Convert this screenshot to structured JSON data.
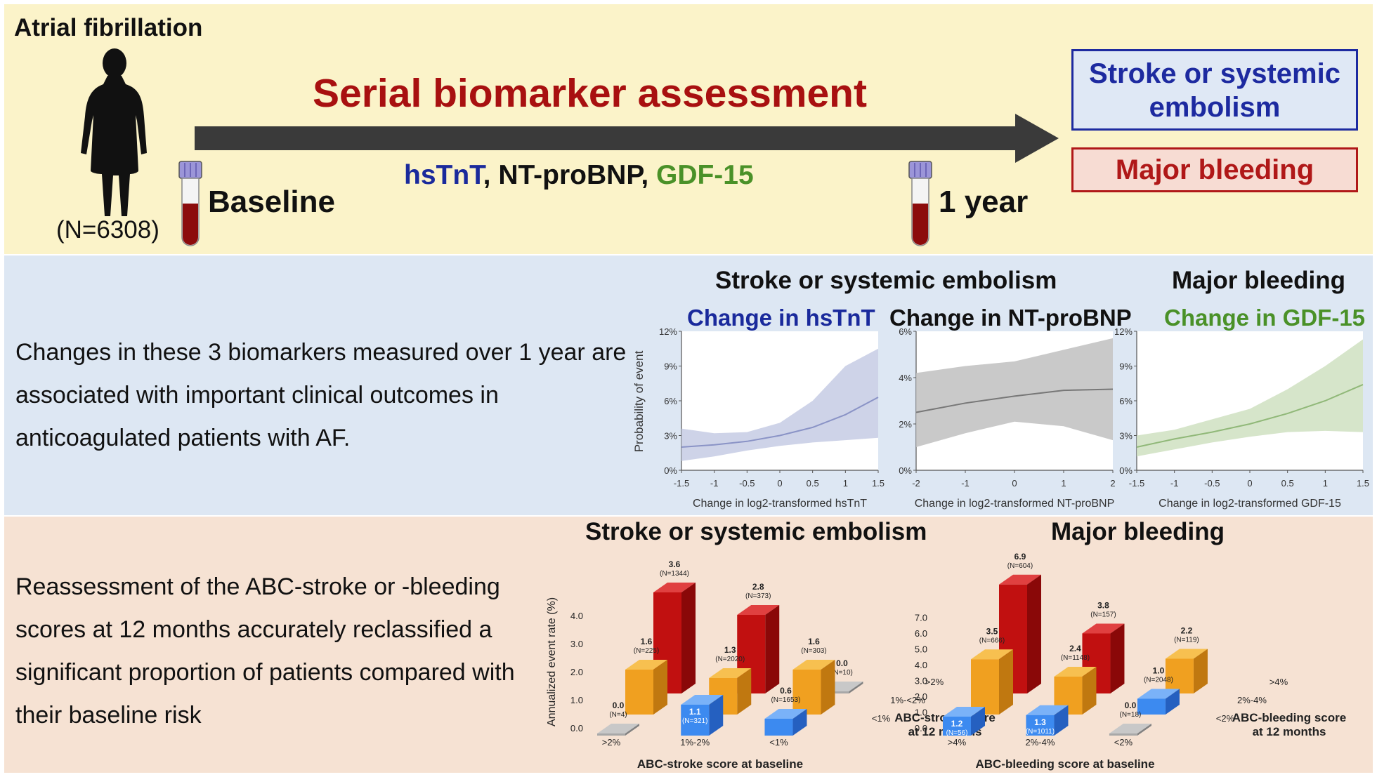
{
  "header": {
    "population_label": "Atrial fibrillation",
    "n_label": "(N=6308)",
    "main_title": "Serial biomarker assessment",
    "biomarkers": [
      {
        "name": "hsTnT",
        "color": "#1a2a9c",
        "sep": ", "
      },
      {
        "name": "NT-proBNP",
        "color": "#111111",
        "sep": ", "
      },
      {
        "name": "GDF-15",
        "color": "#4a9128",
        "sep": ""
      }
    ],
    "baseline_label": "Baseline",
    "one_year_label": "1 year",
    "outcome_stroke": "Stroke or systemic embolism",
    "outcome_bleeding": "Major bleeding"
  },
  "middle": {
    "text": "Changes in these 3 biomarkers measured over 1 year are associated with important clinical outcomes in anticoagulated patients with AF.",
    "title_stroke": "Stroke or systemic embolism",
    "title_bleeding": "Major bleeding",
    "ylabel": "Probability of event"
  },
  "bottom": {
    "text": "Reassessment of the ABC-stroke or -bleeding scores at 12 months accurately reclassified a significant proportion of patients compared with their baseline risk",
    "title_stroke": "Stroke or systemic embolism",
    "title_bleeding": "Major bleeding",
    "ylabel": "Annualized event rate (%)"
  },
  "colors": {
    "red_bar": "#c11010",
    "orange_bar": "#f0a020",
    "blue_bar": "#3c8af0",
    "gray_bar": "#a8a8a8",
    "hsTnT": "#1a2a9c",
    "GDF15": "#4a9128"
  },
  "chart_data": [
    {
      "type": "line",
      "subtitle": "Change in hsTnT",
      "subtitle_color": "#1a2a9c",
      "xlabel": "Change in log2-transformed hsTnT",
      "ylabel": "Probability of event",
      "xlim": [
        -1.5,
        1.5
      ],
      "ylim": [
        0,
        12
      ],
      "xticks": [
        -1.5,
        -1,
        -0.5,
        0,
        0.5,
        1,
        1.5
      ],
      "yticks": [
        "0%",
        "3%",
        "6%",
        "9%",
        "12%"
      ],
      "ytick_values": [
        0,
        3,
        6,
        9,
        12
      ],
      "line_color": "#8a93c6",
      "band_color": "#c6cbe4",
      "x": [
        -1.5,
        -1,
        -0.5,
        0,
        0.5,
        1,
        1.5
      ],
      "y": [
        2.0,
        2.2,
        2.5,
        3.0,
        3.7,
        4.8,
        6.3
      ],
      "lower": [
        0.8,
        1.2,
        1.7,
        2.1,
        2.4,
        2.6,
        2.8
      ],
      "upper": [
        3.6,
        3.2,
        3.3,
        4.1,
        6.0,
        9.0,
        10.5
      ]
    },
    {
      "type": "line",
      "subtitle": "Change in NT-proBNP",
      "subtitle_color": "#111111",
      "xlabel": "Change in log2-transformed NT-proBNP",
      "ylabel": "",
      "xlim": [
        -2,
        2
      ],
      "ylim": [
        0,
        6
      ],
      "xticks": [
        -2,
        -1,
        0,
        1,
        2
      ],
      "yticks": [
        "0%",
        "2%",
        "4%",
        "6%"
      ],
      "ytick_values": [
        0,
        2,
        4,
        6
      ],
      "line_color": "#777777",
      "band_color": "#c0c0c0",
      "x": [
        -2,
        -1,
        0,
        1,
        2
      ],
      "y": [
        2.5,
        2.9,
        3.2,
        3.45,
        3.5
      ],
      "lower": [
        1.0,
        1.6,
        2.1,
        1.9,
        1.3
      ],
      "upper": [
        4.2,
        4.5,
        4.7,
        5.2,
        5.7
      ]
    },
    {
      "type": "line",
      "subtitle": "Change in GDF-15",
      "subtitle_color": "#4a9128",
      "xlabel": "Change in log2-transformed GDF-15",
      "ylabel": "",
      "xlim": [
        -1.5,
        1.5
      ],
      "ylim": [
        0,
        12
      ],
      "xticks": [
        -1.5,
        -1,
        -0.5,
        0,
        0.5,
        1,
        1.5
      ],
      "yticks": [
        "0%",
        "3%",
        "6%",
        "9%",
        "12%"
      ],
      "ytick_values": [
        0,
        3,
        6,
        9,
        12
      ],
      "line_color": "#90b878",
      "band_color": "#cfe0c1",
      "x": [
        -1.5,
        -1,
        -0.5,
        0,
        0.5,
        1,
        1.5
      ],
      "y": [
        2.0,
        2.7,
        3.3,
        4.0,
        4.9,
        6.0,
        7.4
      ],
      "lower": [
        1.2,
        1.8,
        2.4,
        2.9,
        3.3,
        3.4,
        3.3
      ],
      "upper": [
        3.0,
        3.5,
        4.4,
        5.3,
        7.0,
        9.0,
        11.3
      ]
    },
    {
      "type": "bar",
      "title": "Stroke or systemic embolism",
      "xlabel": "ABC-stroke score at baseline",
      "zlabel": "ABC-stroke score at 12 months",
      "ylabel": "Annualized event rate (%)",
      "ylim": [
        0,
        4
      ],
      "yticks": [
        "0.0",
        "1.0",
        "2.0",
        "3.0",
        "4.0"
      ],
      "categories": [
        ">2%",
        "1%-2%",
        "<1%"
      ],
      "rows": [
        ">2%",
        "1%-<2%",
        "<1%"
      ],
      "bars": [
        {
          "base": ">2%",
          "now": ">2%",
          "value": 3.6,
          "n": "(N=1344)",
          "color": "red"
        },
        {
          "base": ">2%",
          "now": "1%-<2%",
          "value": 1.6,
          "n": "(N=225)",
          "color": "orange"
        },
        {
          "base": ">2%",
          "now": "<1%",
          "value": 0.0,
          "n": "(N=4)",
          "color": "gray"
        },
        {
          "base": "1%-2%",
          "now": ">2%",
          "value": 2.8,
          "n": "(N=373)",
          "color": "red"
        },
        {
          "base": "1%-2%",
          "now": "1%-<2%",
          "value": 1.3,
          "n": "(N=2020)",
          "color": "orange"
        },
        {
          "base": "1%-2%",
          "now": "<1%",
          "value": 1.1,
          "n": "(N=321)",
          "color": "blue"
        },
        {
          "base": "<1%",
          "now": ">2%",
          "value": 0.0,
          "n": "(N=10)",
          "color": "gray"
        },
        {
          "base": "<1%",
          "now": "1%-<2%",
          "value": 1.6,
          "n": "(N=303)",
          "color": "orange"
        },
        {
          "base": "<1%",
          "now": "<1%",
          "value": 0.6,
          "n": "(N=1653)",
          "color": "blue"
        }
      ]
    },
    {
      "type": "bar",
      "title": "Major bleeding",
      "xlabel": "ABC-bleeding score at baseline",
      "zlabel": "ABC-bleeding score at 12 months",
      "ylabel": "",
      "ylim": [
        0,
        7
      ],
      "yticks": [
        "0.0",
        "1.0",
        "2.0",
        "3.0",
        "4.0",
        "5.0",
        "6.0",
        "7.0"
      ],
      "categories": [
        ">4%",
        "2%-4%",
        "<2%"
      ],
      "rows": [
        ">4%",
        "2%-4%",
        "<2%"
      ],
      "bars": [
        {
          "base": ">4%",
          "now": ">4%",
          "value": 6.9,
          "n": "(N=604)",
          "color": "red"
        },
        {
          "base": ">4%",
          "now": "2%-4%",
          "value": 3.5,
          "n": "(N=666)",
          "color": "orange"
        },
        {
          "base": ">4%",
          "now": "<2%",
          "value": 1.2,
          "n": "(N=56)",
          "color": "blue"
        },
        {
          "base": "2%-4%",
          "now": ">4%",
          "value": 3.8,
          "n": "(N=157)",
          "color": "red"
        },
        {
          "base": "2%-4%",
          "now": "2%-4%",
          "value": 2.4,
          "n": "(N=1148)",
          "color": "orange"
        },
        {
          "base": "2%-4%",
          "now": "<2%",
          "value": 1.3,
          "n": "(N=1011)",
          "color": "blue"
        },
        {
          "base": "<2%",
          "now": ">4%",
          "value": 2.2,
          "n": "(N=119)",
          "color": "orange"
        },
        {
          "base": "<2%",
          "now": "2%-4%",
          "value": 1.0,
          "n": "(N=2048)",
          "color": "blue"
        },
        {
          "base": "<2%",
          "now": "<2%",
          "value": 0.0,
          "n": "(N=18)",
          "color": "gray"
        }
      ]
    }
  ]
}
